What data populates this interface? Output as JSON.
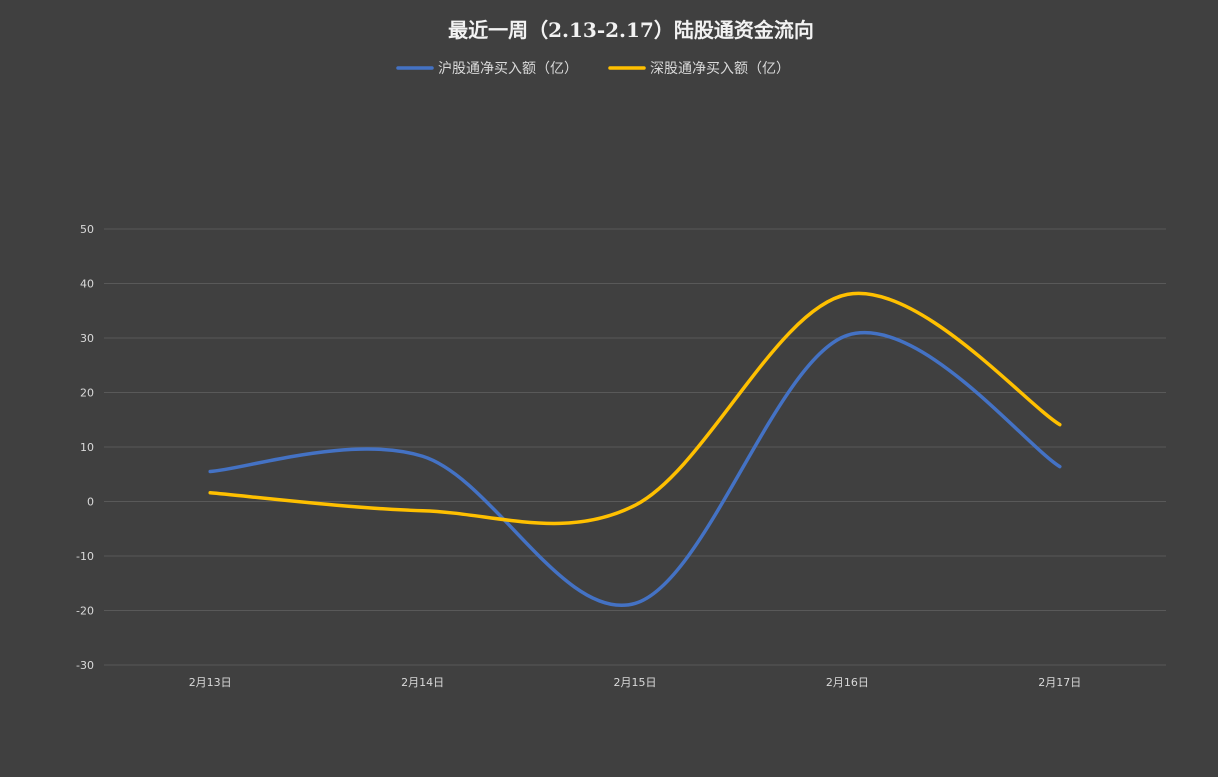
{
  "chart_data": {
    "type": "line",
    "title": "最近一周（2.13-2.17）陆股通资金流向",
    "xlabel": "",
    "ylabel": "",
    "categories": [
      "2月13日",
      "2月14日",
      "2月15日",
      "2月16日",
      "2月17日"
    ],
    "ylim": [
      -30,
      50
    ],
    "yticks": [
      50,
      40,
      30,
      20,
      10,
      0,
      -10,
      -20,
      -30
    ],
    "grid": true,
    "smooth": true,
    "legend_position": "top",
    "series": [
      {
        "name": "沪股通净买入额（亿）",
        "color": "#4472c4",
        "values": [
          5.5,
          8.3,
          -18.7,
          30.5,
          6.4
        ]
      },
      {
        "name": "深股通净买入额（亿）",
        "color": "#ffc000",
        "values": [
          1.6,
          -1.7,
          -0.7,
          38.0,
          14.1
        ]
      }
    ]
  }
}
